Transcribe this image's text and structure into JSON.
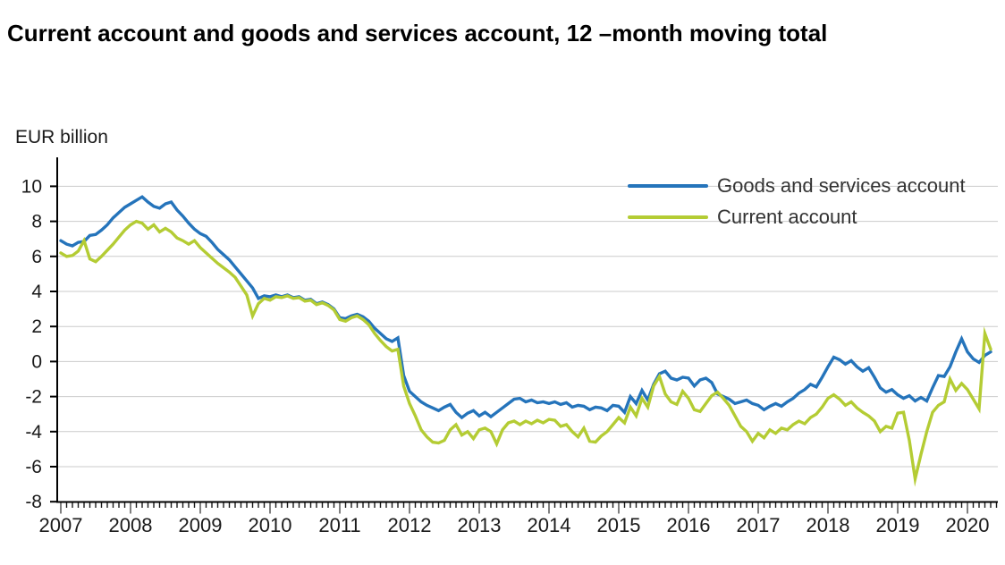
{
  "title": "Current account and goods and services account, 12 –month moving total",
  "y_axis_label": "EUR billion",
  "chart_data": {
    "type": "line",
    "title": "Current account and goods and services account, 12 –month moving total",
    "ylabel": "EUR billion",
    "ylim": [
      -8,
      10
    ],
    "y_ticks": [
      10,
      8,
      6,
      4,
      2,
      0,
      -2,
      -4,
      -6,
      -8
    ],
    "x_start": "2007-01",
    "x_end": "2020-05",
    "x_tick_years": [
      2007,
      2008,
      2009,
      2010,
      2011,
      2012,
      2013,
      2014,
      2015,
      2016,
      2017,
      2018,
      2019,
      2020
    ],
    "x_minor_ticks": "monthly",
    "grid": true,
    "legend_position": "top-right-inside",
    "series": [
      {
        "name": "Goods and services account",
        "color": "#2574bb",
        "values": [
          6.9,
          6.7,
          6.6,
          6.8,
          6.85,
          7.2,
          7.25,
          7.5,
          7.8,
          8.2,
          8.5,
          8.8,
          9.0,
          9.2,
          9.4,
          9.1,
          8.85,
          8.75,
          9.0,
          9.1,
          8.65,
          8.3,
          7.9,
          7.55,
          7.3,
          7.15,
          6.8,
          6.4,
          6.1,
          5.8,
          5.4,
          5.0,
          4.6,
          4.2,
          3.6,
          3.75,
          3.7,
          3.8,
          3.7,
          3.8,
          3.65,
          3.7,
          3.5,
          3.55,
          3.3,
          3.4,
          3.25,
          3.0,
          2.5,
          2.45,
          2.6,
          2.7,
          2.55,
          2.3,
          1.9,
          1.6,
          1.3,
          1.15,
          1.35,
          -0.8,
          -1.7,
          -2.0,
          -2.3,
          -2.5,
          -2.65,
          -2.8,
          -2.6,
          -2.45,
          -2.9,
          -3.2,
          -2.95,
          -2.8,
          -3.1,
          -2.9,
          -3.15,
          -2.9,
          -2.65,
          -2.4,
          -2.15,
          -2.1,
          -2.3,
          -2.2,
          -2.35,
          -2.3,
          -2.4,
          -2.3,
          -2.45,
          -2.35,
          -2.6,
          -2.5,
          -2.55,
          -2.75,
          -2.6,
          -2.65,
          -2.8,
          -2.5,
          -2.55,
          -2.9,
          -2.0,
          -2.4,
          -1.65,
          -2.2,
          -1.3,
          -0.7,
          -0.55,
          -0.95,
          -1.05,
          -0.9,
          -0.95,
          -1.4,
          -1.05,
          -0.95,
          -1.2,
          -1.85,
          -2.0,
          -2.15,
          -2.4,
          -2.3,
          -2.2,
          -2.4,
          -2.5,
          -2.75,
          -2.55,
          -2.4,
          -2.55,
          -2.3,
          -2.1,
          -1.8,
          -1.6,
          -1.3,
          -1.45,
          -0.9,
          -0.3,
          0.25,
          0.1,
          -0.15,
          0.05,
          -0.3,
          -0.55,
          -0.35,
          -0.9,
          -1.5,
          -1.75,
          -1.6,
          -1.9,
          -2.1,
          -1.95,
          -2.25,
          -2.05,
          -2.25,
          -1.5,
          -0.8,
          -0.85,
          -0.3,
          0.55,
          1.3,
          0.55,
          0.15,
          -0.05,
          0.35,
          0.55
        ]
      },
      {
        "name": "Current account",
        "color": "#b4cc34",
        "values": [
          6.2,
          6.0,
          6.05,
          6.3,
          6.9,
          5.85,
          5.7,
          6.0,
          6.35,
          6.7,
          7.1,
          7.5,
          7.8,
          8.0,
          7.9,
          7.55,
          7.8,
          7.4,
          7.6,
          7.4,
          7.05,
          6.9,
          6.7,
          6.9,
          6.5,
          6.2,
          5.9,
          5.6,
          5.35,
          5.1,
          4.8,
          4.3,
          3.8,
          2.6,
          3.3,
          3.6,
          3.5,
          3.7,
          3.65,
          3.75,
          3.6,
          3.65,
          3.45,
          3.5,
          3.25,
          3.35,
          3.2,
          2.95,
          2.4,
          2.3,
          2.5,
          2.6,
          2.4,
          2.1,
          1.6,
          1.2,
          0.85,
          0.6,
          0.7,
          -1.4,
          -2.4,
          -3.1,
          -3.9,
          -4.3,
          -4.6,
          -4.65,
          -4.5,
          -3.9,
          -3.6,
          -4.2,
          -4.0,
          -4.4,
          -3.9,
          -3.8,
          -4.0,
          -4.7,
          -3.9,
          -3.5,
          -3.4,
          -3.6,
          -3.4,
          -3.55,
          -3.35,
          -3.5,
          -3.3,
          -3.35,
          -3.7,
          -3.6,
          -4.0,
          -4.3,
          -3.8,
          -4.55,
          -4.6,
          -4.25,
          -4.0,
          -3.6,
          -3.2,
          -3.5,
          -2.6,
          -3.1,
          -2.1,
          -2.6,
          -1.4,
          -0.85,
          -1.85,
          -2.3,
          -2.45,
          -1.7,
          -2.1,
          -2.75,
          -2.85,
          -2.4,
          -1.95,
          -1.75,
          -2.1,
          -2.5,
          -3.1,
          -3.7,
          -4.0,
          -4.55,
          -4.1,
          -4.35,
          -3.9,
          -4.1,
          -3.8,
          -3.9,
          -3.6,
          -3.4,
          -3.55,
          -3.2,
          -3.0,
          -2.6,
          -2.1,
          -1.9,
          -2.15,
          -2.5,
          -2.3,
          -2.65,
          -2.9,
          -3.1,
          -3.4,
          -4.0,
          -3.7,
          -3.8,
          -2.95,
          -2.9,
          -4.5,
          -6.7,
          -5.3,
          -4.0,
          -2.9,
          -2.5,
          -2.3,
          -1.0,
          -1.65,
          -1.25,
          -1.6,
          -2.15,
          -2.7,
          1.6,
          0.7
        ]
      }
    ]
  }
}
